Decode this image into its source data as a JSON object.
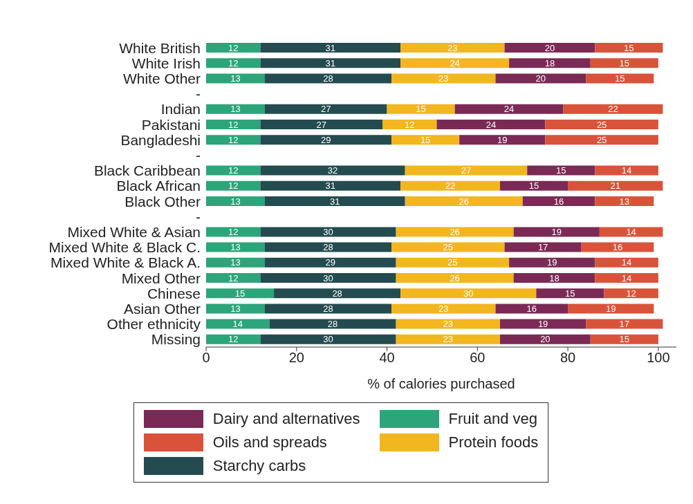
{
  "chart_data": {
    "type": "bar",
    "orientation": "horizontal",
    "stacked": true,
    "data_labels": true,
    "legend": "bottom",
    "grid": false,
    "xlabel": "% of calories purchased",
    "categories": [
      "White British",
      "White Irish",
      "White Other",
      "-",
      "Indian",
      "Pakistani",
      "Bangladeshi",
      "-",
      "Black Caribbean",
      "Black African",
      "Black Other",
      "-",
      "Mixed White & Asian",
      "Mixed White & Black C.",
      "Mixed White & Black A.",
      "Mixed Other",
      "Chinese",
      "Asian Other",
      "Other ethnicity",
      "Missing"
    ],
    "xlim": [
      0,
      104
    ],
    "xticks": [
      0,
      20,
      40,
      60,
      80,
      100
    ],
    "series": [
      {
        "name": "Fruit and veg",
        "color": "#2ca57a",
        "values": [
          12,
          12,
          13,
          null,
          13,
          12,
          12,
          null,
          12,
          12,
          13,
          null,
          12,
          13,
          13,
          12,
          15,
          13,
          14,
          12
        ]
      },
      {
        "name": "Starchy carbs",
        "color": "#244b4f",
        "values": [
          31,
          31,
          28,
          null,
          27,
          27,
          29,
          null,
          32,
          31,
          31,
          null,
          30,
          28,
          29,
          30,
          28,
          28,
          28,
          30
        ]
      },
      {
        "name": "Protein foods",
        "color": "#f2b61f",
        "values": [
          23,
          24,
          23,
          null,
          15,
          12,
          15,
          null,
          27,
          22,
          26,
          null,
          26,
          25,
          25,
          26,
          30,
          23,
          23,
          23
        ]
      },
      {
        "name": "Dairy and alternatives",
        "color": "#7a2a55",
        "values": [
          20,
          18,
          20,
          null,
          24,
          24,
          19,
          null,
          15,
          15,
          16,
          null,
          19,
          17,
          19,
          18,
          15,
          16,
          19,
          20
        ]
      },
      {
        "name": "Oils and spreads",
        "color": "#d9533a",
        "values": [
          15,
          15,
          15,
          null,
          22,
          25,
          25,
          null,
          14,
          21,
          13,
          null,
          14,
          16,
          14,
          14,
          12,
          19,
          17,
          15
        ]
      }
    ]
  }
}
